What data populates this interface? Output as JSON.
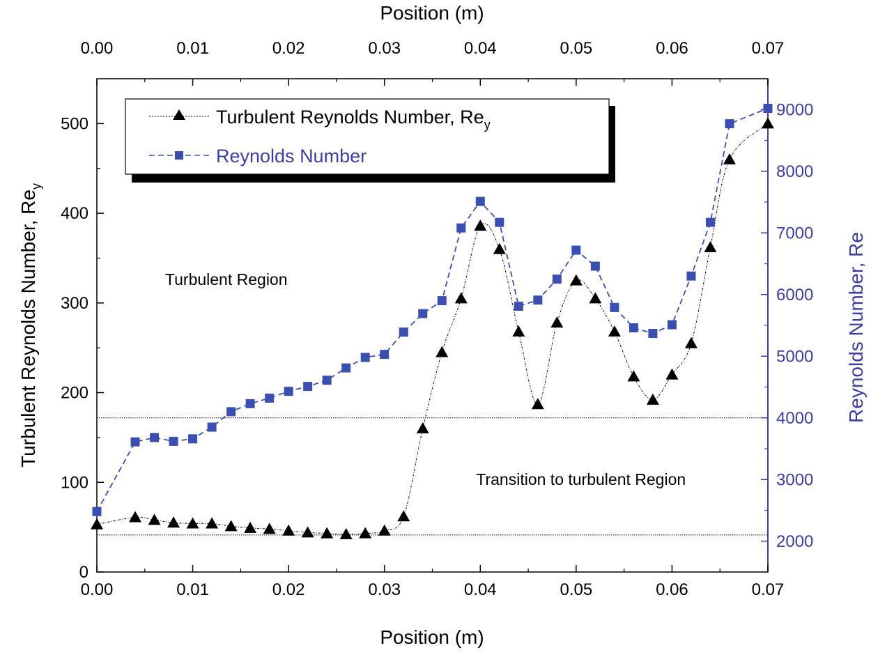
{
  "chart_data": {
    "type": "line",
    "xlabel_bottom": "Position (m)",
    "xlabel_top": "Position (m)",
    "ylabel_left": "Turbulent Reynolds Number, Re",
    "ylabel_left_sub": "y",
    "ylabel_right": "Reynolds Number, Re",
    "xlim": [
      0,
      0.07
    ],
    "ylim_left": [
      0,
      550
    ],
    "ylim_right": [
      1500,
      9500
    ],
    "xticks": [
      "0.00",
      "0.01",
      "0.02",
      "0.03",
      "0.04",
      "0.05",
      "0.06",
      "0.07"
    ],
    "xtick_values": [
      0,
      0.01,
      0.02,
      0.03,
      0.04,
      0.05,
      0.06,
      0.07
    ],
    "yticks_left": [
      "0",
      "100",
      "200",
      "300",
      "400",
      "500"
    ],
    "ytick_values_left": [
      0,
      100,
      200,
      300,
      400,
      500
    ],
    "yticks_right": [
      "2000",
      "3000",
      "4000",
      "5000",
      "6000",
      "7000",
      "8000",
      "9000"
    ],
    "ytick_values_right": [
      2000,
      3000,
      4000,
      5000,
      6000,
      7000,
      8000,
      9000
    ],
    "grid": false,
    "legend_placement": "top-left",
    "reference_lines_right_axis": [
      2100,
      4000
    ],
    "annotations": [
      {
        "text": "Turbulent Region",
        "x": 0.0135,
        "y_left": 320
      },
      {
        "text": "Transition to turbulent Region",
        "x": 0.0505,
        "y_left": 97
      }
    ],
    "series": [
      {
        "name": "Turbulent Reynolds Number, Re",
        "name_sub": "y",
        "axis": "left",
        "color": "#000000",
        "marker": "triangle",
        "line_style": "dash-dot",
        "x": [
          0.0,
          0.004,
          0.006,
          0.008,
          0.01,
          0.012,
          0.014,
          0.016,
          0.018,
          0.02,
          0.022,
          0.024,
          0.026,
          0.028,
          0.03,
          0.032,
          0.034,
          0.036,
          0.038,
          0.04,
          0.042,
          0.044,
          0.046,
          0.048,
          0.05,
          0.052,
          0.054,
          0.056,
          0.058,
          0.06,
          0.062,
          0.064,
          0.066,
          0.07
        ],
        "values": [
          53,
          61,
          58,
          55,
          54,
          54,
          51,
          49,
          48,
          46,
          44,
          43,
          42,
          43,
          46,
          62,
          160,
          245,
          305,
          386,
          360,
          268,
          187,
          278,
          325,
          305,
          268,
          218,
          192,
          220,
          255,
          362,
          460,
          500
        ]
      },
      {
        "name": "Reynolds Number",
        "axis": "right",
        "color": "#3b4fb0",
        "marker": "square",
        "line_style": "dashed",
        "x": [
          0.0,
          0.004,
          0.006,
          0.008,
          0.01,
          0.012,
          0.014,
          0.016,
          0.018,
          0.02,
          0.022,
          0.024,
          0.026,
          0.028,
          0.03,
          0.032,
          0.034,
          0.036,
          0.038,
          0.04,
          0.042,
          0.044,
          0.046,
          0.048,
          0.05,
          0.052,
          0.054,
          0.056,
          0.058,
          0.06,
          0.062,
          0.064,
          0.066,
          0.07
        ],
        "values": [
          2480,
          3610,
          3680,
          3620,
          3660,
          3850,
          4100,
          4230,
          4320,
          4430,
          4510,
          4610,
          4810,
          4980,
          5030,
          5390,
          5690,
          5900,
          7080,
          7510,
          7170,
          5810,
          5910,
          6250,
          6720,
          6460,
          5790,
          5460,
          5370,
          5510,
          6300,
          7170,
          8770,
          9020
        ]
      }
    ]
  }
}
